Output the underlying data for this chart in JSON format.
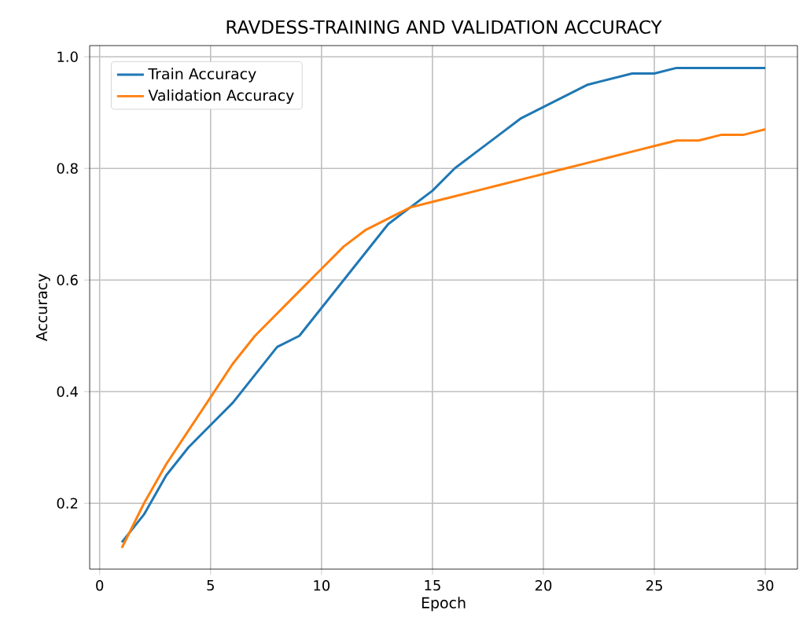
{
  "chart_data": {
    "type": "line",
    "title": "RAVDESS-TRAINING AND VALIDATION ACCURACY",
    "xlabel": "Epoch",
    "ylabel": "Accuracy",
    "x": [
      1,
      2,
      3,
      4,
      5,
      6,
      7,
      8,
      9,
      10,
      11,
      12,
      13,
      14,
      15,
      16,
      17,
      18,
      19,
      20,
      21,
      22,
      23,
      24,
      25,
      26,
      27,
      28,
      29,
      30
    ],
    "series": [
      {
        "name": "Train Accuracy",
        "color": "#1f77b4",
        "values": [
          0.13,
          0.18,
          0.25,
          0.3,
          0.34,
          0.38,
          0.43,
          0.48,
          0.5,
          0.55,
          0.6,
          0.65,
          0.7,
          0.73,
          0.76,
          0.8,
          0.83,
          0.86,
          0.89,
          0.91,
          0.93,
          0.95,
          0.96,
          0.97,
          0.97,
          0.98,
          0.98,
          0.98,
          0.98,
          0.98
        ]
      },
      {
        "name": "Validation Accuracy",
        "color": "#ff7f0e",
        "values": [
          0.12,
          0.2,
          0.27,
          0.33,
          0.39,
          0.45,
          0.5,
          0.54,
          0.58,
          0.62,
          0.66,
          0.69,
          0.71,
          0.73,
          0.74,
          0.75,
          0.76,
          0.77,
          0.78,
          0.79,
          0.8,
          0.81,
          0.82,
          0.83,
          0.84,
          0.85,
          0.85,
          0.86,
          0.86,
          0.87
        ]
      }
    ],
    "xlim": [
      -0.45,
      31.45
    ],
    "ylim": [
      0.082,
      1.02
    ],
    "xticks": [
      0,
      5,
      10,
      15,
      20,
      25,
      30
    ],
    "yticks": [
      0.2,
      0.4,
      0.6,
      0.8,
      {
        "value": 1.0,
        "label": "1.0"
      }
    ],
    "grid": true,
    "legend": "top left",
    "marker": "none",
    "line_style": "solid"
  }
}
